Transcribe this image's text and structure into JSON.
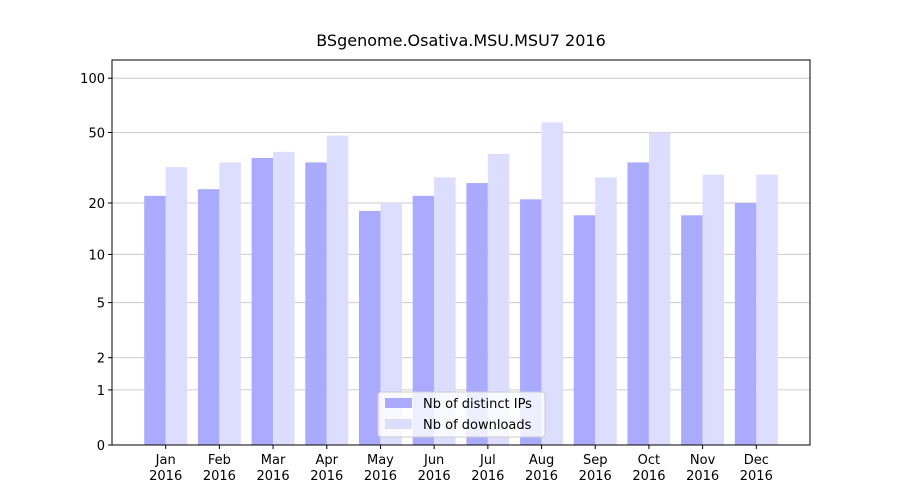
{
  "chart_data": {
    "type": "bar",
    "title": "BSgenome.Osativa.MSU.MSU7 2016",
    "y_scale": "log1p",
    "categories": [
      "Jan\n2016",
      "Feb\n2016",
      "Mar\n2016",
      "Apr\n2016",
      "May\n2016",
      "Jun\n2016",
      "Jul\n2016",
      "Aug\n2016",
      "Sep\n2016",
      "Oct\n2016",
      "Nov\n2016",
      "Dec\n2016"
    ],
    "series": [
      {
        "name": "Nb of distinct IPs",
        "color": "#aaaaff",
        "values": [
          22,
          24,
          36,
          34,
          18,
          22,
          26,
          21,
          17,
          34,
          17,
          20
        ]
      },
      {
        "name": "Nb of downloads",
        "color": "#ddddff",
        "values": [
          32,
          34,
          39,
          48,
          20,
          28,
          38,
          57,
          28,
          50,
          29,
          29
        ]
      }
    ],
    "ylim": [
      0,
      126
    ],
    "yticks": [
      0,
      1,
      2,
      5,
      10,
      20,
      50,
      100
    ],
    "grid": true,
    "legend": "lower center"
  }
}
